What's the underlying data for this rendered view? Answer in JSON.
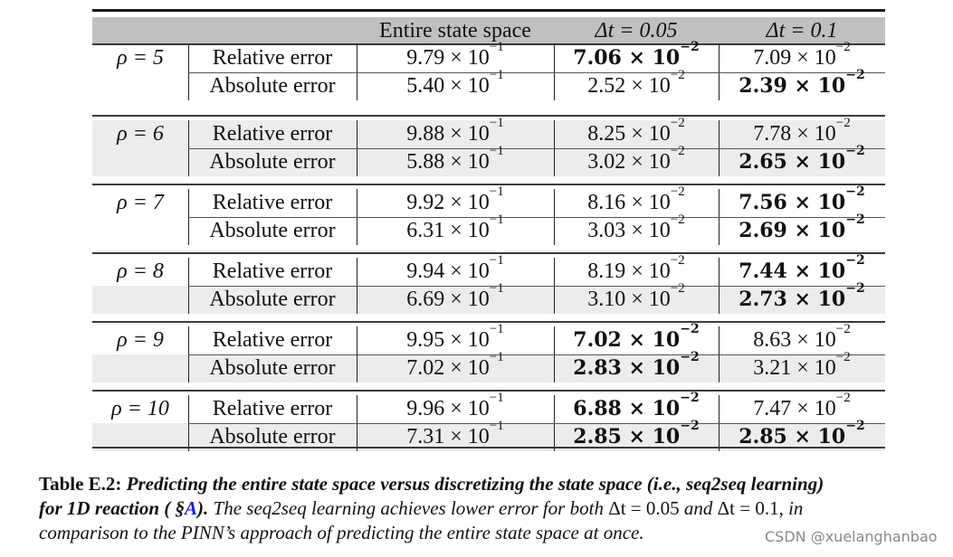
{
  "table": {
    "header": {
      "col0": "",
      "col1": "",
      "col2": "Entire state space",
      "col3": "Δt = 0.05",
      "col4": "Δt = 0.1"
    },
    "groups": [
      {
        "rho": "ρ = 5",
        "rows": [
          {
            "metric": "Relative error",
            "entire": {
              "m": "9.79 × 10",
              "e": "−1",
              "bold": false
            },
            "dt005": {
              "m": "7.06 × 10",
              "e": "−2",
              "bold": true
            },
            "dt01": {
              "m": "7.09 × 10",
              "e": "−2",
              "bold": false
            }
          },
          {
            "metric": "Absolute error",
            "entire": {
              "m": "5.40 × 10",
              "e": "−1",
              "bold": false
            },
            "dt005": {
              "m": "2.52 × 10",
              "e": "−2",
              "bold": false
            },
            "dt01": {
              "m": "2.39 × 10",
              "e": "−2",
              "bold": true
            }
          }
        ]
      },
      {
        "rho": "ρ = 6",
        "rows": [
          {
            "metric": "Relative error",
            "entire": {
              "m": "9.88 × 10",
              "e": "−1",
              "bold": false
            },
            "dt005": {
              "m": "8.25 × 10",
              "e": "−2",
              "bold": false
            },
            "dt01": {
              "m": "7.78 × 10",
              "e": "−2",
              "bold": false
            }
          },
          {
            "metric": "Absolute error",
            "entire": {
              "m": "5.88 × 10",
              "e": "−1",
              "bold": false
            },
            "dt005": {
              "m": "3.02 × 10",
              "e": "−2",
              "bold": false
            },
            "dt01": {
              "m": "2.65 × 10",
              "e": "−2",
              "bold": true
            }
          }
        ]
      },
      {
        "rho": "ρ = 7",
        "rows": [
          {
            "metric": "Relative error",
            "entire": {
              "m": "9.92 × 10",
              "e": "−1",
              "bold": false
            },
            "dt005": {
              "m": "8.16 × 10",
              "e": "−2",
              "bold": false
            },
            "dt01": {
              "m": "7.56 × 10",
              "e": "−2",
              "bold": true
            }
          },
          {
            "metric": "Absolute error",
            "entire": {
              "m": "6.31 × 10",
              "e": "−1",
              "bold": false
            },
            "dt005": {
              "m": "3.03 × 10",
              "e": "−2",
              "bold": false
            },
            "dt01": {
              "m": "2.69 × 10",
              "e": "−2",
              "bold": true
            }
          }
        ]
      },
      {
        "rho": "ρ = 8",
        "rows": [
          {
            "metric": "Relative error",
            "entire": {
              "m": "9.94 × 10",
              "e": "−1",
              "bold": false
            },
            "dt005": {
              "m": "8.19 × 10",
              "e": "−2",
              "bold": false
            },
            "dt01": {
              "m": "7.44 × 10",
              "e": "−2",
              "bold": true
            }
          },
          {
            "metric": "Absolute error",
            "entire": {
              "m": "6.69 × 10",
              "e": "−1",
              "bold": false
            },
            "dt005": {
              "m": "3.10 × 10",
              "e": "−2",
              "bold": false
            },
            "dt01": {
              "m": "2.73 × 10",
              "e": "−2",
              "bold": true
            }
          }
        ]
      },
      {
        "rho": "ρ = 9",
        "rows": [
          {
            "metric": "Relative error",
            "entire": {
              "m": "9.95 × 10",
              "e": "−1",
              "bold": false
            },
            "dt005": {
              "m": "7.02 × 10",
              "e": "−2",
              "bold": true
            },
            "dt01": {
              "m": "8.63 × 10",
              "e": "−2",
              "bold": false
            }
          },
          {
            "metric": "Absolute error",
            "entire": {
              "m": "7.02 × 10",
              "e": "−1",
              "bold": false
            },
            "dt005": {
              "m": "2.83 × 10",
              "e": "−2",
              "bold": true
            },
            "dt01": {
              "m": "3.21 × 10",
              "e": "−2",
              "bold": false
            }
          }
        ]
      },
      {
        "rho": "ρ = 10",
        "rows": [
          {
            "metric": "Relative error",
            "entire": {
              "m": "9.96 × 10",
              "e": "−1",
              "bold": false
            },
            "dt005": {
              "m": "6.88 × 10",
              "e": "−2",
              "bold": true
            },
            "dt01": {
              "m": "7.47 × 10",
              "e": "−2",
              "bold": false
            }
          },
          {
            "metric": "Absolute error",
            "entire": {
              "m": "7.31 × 10",
              "e": "−1",
              "bold": false
            },
            "dt005": {
              "m": "2.85 × 10",
              "e": "−2",
              "bold": true
            },
            "dt01": {
              "m": "2.85 × 10",
              "e": "−2",
              "bold": true
            }
          }
        ]
      }
    ]
  },
  "caption": {
    "label": "Table E.2:",
    "bold_italic_1": "Predicting the entire state space versus discretizing the state space (i.e., seq2seq learning)",
    "bold_italic_2": "for 1D reaction ( §",
    "link": "A",
    "bold_italic_3": ").",
    "italic_1": "The seq2seq learning achieves lower error for both",
    "math_1": "Δt = 0.05",
    "italic_2": "and",
    "math_2": "Δt = 0.1,",
    "italic_3": "in",
    "line3": "comparison to the PINN’s approach of predicting the entire state space at once."
  },
  "watermark": "CSDN @xuelanghanbao",
  "colors": {
    "header_band": "#c0c0c0",
    "row_shade": "#ececec",
    "link": "#1a1aee"
  }
}
